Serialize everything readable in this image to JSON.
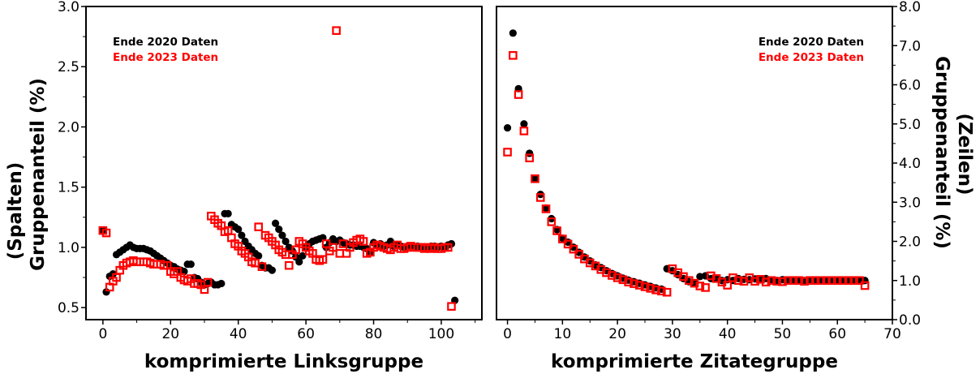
{
  "chart_data": [
    {
      "type": "scatter",
      "xlabel": "komprimierte Linksgruppe",
      "ylabel_lines": [
        "(Spalten)",
        "Gruppenanteil (%)"
      ],
      "xlim": [
        -5,
        112
      ],
      "ylim": [
        0.4,
        3.0
      ],
      "xticks": [
        0,
        20,
        40,
        60,
        80,
        100
      ],
      "yticks": [
        0.5,
        1.0,
        1.5,
        2.0,
        2.5,
        3.0
      ],
      "ytick_labels": [
        "0.5",
        "1.0",
        "1.5",
        "2.0",
        "2.5",
        "3.0"
      ],
      "legend": [
        "Ende 2020 Daten",
        "Ende 2023 Daten"
      ],
      "legend_position": "top-left",
      "series": [
        {
          "name": "Ende 2020 Daten",
          "color": "#000000",
          "marker": "filled-circle",
          "x": [
            0,
            1,
            2,
            3,
            4,
            5,
            6,
            7,
            8,
            9,
            10,
            11,
            12,
            13,
            14,
            15,
            16,
            17,
            18,
            19,
            20,
            21,
            22,
            23,
            24,
            25,
            26,
            27,
            28,
            29,
            30,
            31,
            32,
            33,
            34,
            35,
            36,
            37,
            38,
            39,
            40,
            41,
            42,
            43,
            44,
            45,
            46,
            47,
            48,
            49,
            50,
            51,
            52,
            53,
            54,
            55,
            56,
            57,
            58,
            59,
            60,
            61,
            62,
            63,
            64,
            65,
            66,
            67,
            68,
            69,
            70,
            71,
            72,
            73,
            74,
            75,
            76,
            77,
            78,
            79,
            80,
            81,
            82,
            83,
            84,
            85,
            86,
            87,
            88,
            89,
            90,
            91,
            92,
            93,
            94,
            95,
            96,
            97,
            98,
            99,
            100,
            101,
            102,
            103,
            104
          ],
          "y": [
            1.14,
            0.63,
            0.76,
            0.78,
            0.94,
            0.96,
            0.98,
            1.0,
            1.02,
            1.0,
            0.99,
            0.99,
            0.99,
            0.98,
            0.97,
            0.95,
            0.93,
            0.91,
            0.89,
            0.87,
            0.85,
            0.84,
            0.82,
            0.81,
            0.8,
            0.86,
            0.86,
            0.75,
            0.74,
            0.71,
            0.69,
            0.7,
            0.71,
            0.69,
            0.69,
            0.7,
            1.28,
            1.28,
            1.19,
            1.17,
            1.15,
            1.1,
            1.05,
            1.01,
            0.98,
            0.95,
            0.93,
            0.85,
            0.83,
            0.83,
            0.81,
            1.2,
            1.15,
            1.1,
            1.05,
            1.0,
            0.97,
            0.92,
            0.88,
            0.93,
            1.0,
            1.03,
            1.05,
            1.06,
            1.07,
            1.08,
            1.0,
            1.04,
            1.07,
            1.05,
            1.06,
            1.04,
            1.03,
            1.02,
            1.02,
            1.01,
            1.01,
            1.0,
            0.99,
            0.96,
            1.04,
            1.02,
            1.03,
            1.01,
            1.02,
            1.05,
            1.01,
            1.02,
            1.01,
            1.0,
            1.01,
            1.0,
            1.0,
            1.01,
            1.0,
            1.0,
            1.0,
            1.01,
            1.01,
            1.0,
            1.01,
            1.0,
            1.02,
            1.03,
            0.56
          ]
        },
        {
          "name": "Ende 2023 Daten",
          "color": "#ff0000",
          "marker": "open-square",
          "x": [
            0,
            1,
            2,
            3,
            4,
            5,
            6,
            7,
            8,
            9,
            10,
            11,
            12,
            13,
            14,
            15,
            16,
            17,
            18,
            19,
            20,
            21,
            22,
            23,
            24,
            25,
            26,
            27,
            28,
            29,
            30,
            31,
            32,
            33,
            34,
            35,
            36,
            37,
            38,
            39,
            40,
            41,
            42,
            43,
            44,
            45,
            46,
            47,
            48,
            49,
            50,
            51,
            52,
            53,
            54,
            55,
            56,
            57,
            58,
            59,
            60,
            61,
            62,
            63,
            64,
            65,
            66,
            67,
            68,
            69,
            70,
            71,
            72,
            73,
            74,
            75,
            76,
            77,
            78,
            79,
            80,
            81,
            82,
            83,
            84,
            85,
            86,
            87,
            88,
            89,
            90,
            91,
            92,
            93,
            94,
            95,
            96,
            97,
            98,
            99,
            100,
            101,
            102,
            103
          ],
          "y": [
            1.14,
            1.12,
            0.67,
            0.72,
            0.75,
            0.81,
            0.85,
            0.87,
            0.88,
            0.89,
            0.88,
            0.88,
            0.88,
            0.88,
            0.87,
            0.86,
            0.86,
            0.86,
            0.85,
            0.85,
            0.8,
            0.78,
            0.8,
            0.75,
            0.73,
            0.72,
            0.74,
            0.7,
            0.7,
            0.69,
            0.65,
            0.71,
            1.26,
            1.23,
            1.2,
            1.18,
            1.13,
            1.14,
            1.08,
            1.03,
            1.01,
            0.97,
            0.95,
            0.92,
            0.88,
            0.87,
            1.17,
            0.84,
            1.1,
            1.08,
            1.05,
            1.02,
            0.98,
            0.96,
            0.94,
            0.85,
            0.94,
            0.98,
            1.05,
            1.03,
            1.0,
            0.97,
            0.95,
            0.9,
            0.89,
            0.9,
            1.03,
            0.97,
            1.0,
            2.8,
            0.95,
            1.03,
            0.95,
            1.0,
            1.04,
            1.06,
            1.07,
            1.05,
            0.95,
            0.96,
            1.0,
            1.02,
            1.01,
            1.0,
            0.99,
            0.98,
            1.0,
            1.02,
            0.99,
            0.99,
            1.0,
            1.01,
            1.0,
            1.0,
            1.0,
            0.99,
            1.0,
            0.99,
            1.0,
            0.99,
            0.99,
            1.0,
            1.0,
            0.51
          ]
        }
      ]
    },
    {
      "type": "scatter",
      "xlabel": "komprimierte Zitategruppe",
      "ylabel_lines": [
        "(Zeilen)",
        "Gruppenanteil (%)"
      ],
      "xlim": [
        -2,
        70
      ],
      "ylim": [
        0.0,
        8.0
      ],
      "xticks": [
        0,
        10,
        20,
        30,
        40,
        50,
        60,
        70
      ],
      "yticks": [
        0,
        1,
        2,
        3,
        4,
        5,
        6,
        7,
        8
      ],
      "ytick_labels": [
        "0.0",
        "1.0",
        "2.0",
        "3.0",
        "4.0",
        "5.0",
        "6.0",
        "7.0",
        "8.0"
      ],
      "legend": [
        "Ende 2020 Daten",
        "Ende 2023 Daten"
      ],
      "legend_position": "top-right",
      "series": [
        {
          "name": "Ende 2020 Daten",
          "color": "#000000",
          "marker": "filled-circle",
          "x": [
            0,
            1,
            2,
            3,
            4,
            5,
            6,
            7,
            8,
            9,
            10,
            11,
            12,
            13,
            14,
            15,
            16,
            17,
            18,
            19,
            20,
            21,
            22,
            23,
            24,
            25,
            26,
            27,
            28,
            29,
            30,
            31,
            32,
            33,
            34,
            35,
            36,
            37,
            38,
            39,
            40,
            41,
            42,
            43,
            44,
            45,
            46,
            47,
            48,
            49,
            50,
            51,
            52,
            53,
            54,
            55,
            56,
            57,
            58,
            59,
            60,
            61,
            62,
            63,
            64,
            65
          ],
          "y": [
            4.9,
            7.32,
            5.9,
            5.0,
            4.25,
            3.6,
            3.2,
            2.85,
            2.58,
            2.3,
            2.08,
            1.98,
            1.85,
            1.72,
            1.6,
            1.5,
            1.4,
            1.33,
            1.25,
            1.18,
            1.12,
            1.06,
            1.01,
            0.97,
            0.93,
            0.89,
            0.85,
            0.81,
            0.78,
            1.3,
            1.25,
            1.15,
            1.05,
            0.97,
            0.92,
            1.1,
            1.12,
            1.05,
            1.05,
            1.0,
            1.02,
            1.0,
            1.05,
            1.03,
            1.02,
            1.04,
            1.02,
            1.05,
            1.01,
            1.0,
            1.02,
            1.0,
            1.01,
            1.01,
            1.0,
            1.0,
            1.0,
            1.0,
            1.0,
            1.0,
            1.0,
            1.0,
            1.0,
            1.0,
            1.0,
            1.0
          ],
          "x_note": ""
        },
        {
          "name": "Ende 2023 Daten",
          "color": "#ff0000",
          "marker": "open-square",
          "x": [
            0,
            1,
            2,
            3,
            4,
            5,
            6,
            7,
            8,
            9,
            10,
            11,
            12,
            13,
            14,
            15,
            16,
            17,
            18,
            19,
            20,
            21,
            22,
            23,
            24,
            25,
            26,
            27,
            28,
            29,
            30,
            31,
            32,
            33,
            34,
            35,
            36,
            37,
            38,
            39,
            40,
            41,
            42,
            43,
            44,
            45,
            46,
            47,
            48,
            49,
            50,
            51,
            52,
            53,
            54,
            55,
            56,
            57,
            58,
            59,
            60,
            61,
            62,
            63,
            64,
            65
          ],
          "y": [
            4.28,
            6.75,
            5.75,
            4.82,
            4.13,
            3.6,
            3.12,
            2.83,
            2.5,
            2.27,
            2.06,
            1.93,
            1.8,
            1.67,
            1.55,
            1.45,
            1.37,
            1.28,
            1.2,
            1.13,
            1.07,
            1.02,
            0.96,
            0.92,
            0.88,
            0.84,
            0.8,
            0.76,
            0.73,
            0.7,
            1.3,
            1.2,
            1.1,
            1.0,
            0.93,
            0.86,
            0.82,
            1.12,
            1.05,
            0.96,
            0.88,
            1.07,
            1.0,
            0.98,
            1.07,
            0.98,
            1.03,
            0.96,
            1.0,
            0.98,
            0.97,
            1.0,
            1.0,
            1.0,
            0.98,
            1.0,
            1.0,
            1.0,
            1.0,
            1.0,
            1.0,
            1.0,
            1.0,
            1.0,
            1.0,
            0.87
          ]
        }
      ]
    }
  ]
}
